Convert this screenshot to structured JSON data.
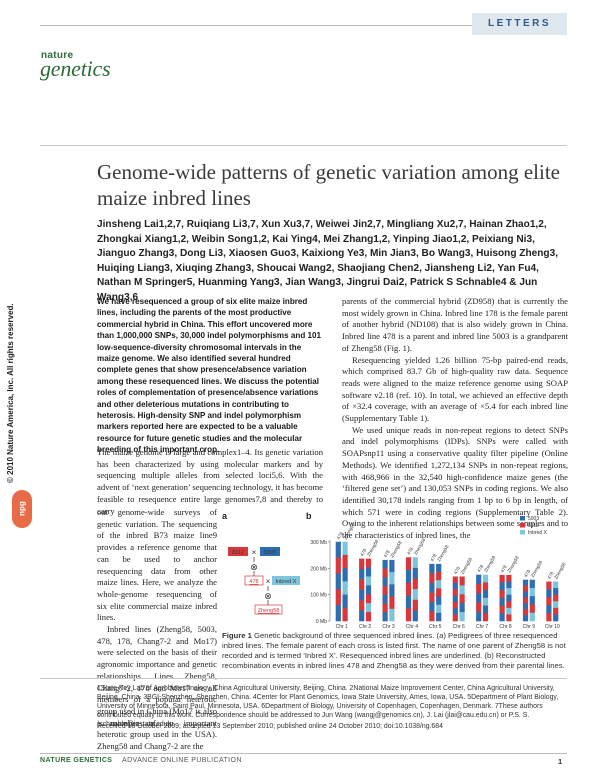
{
  "header": {
    "section_label": "LETTERS",
    "logo_top": "nature",
    "logo_bottom": "genetics"
  },
  "copyright": "© 2010 Nature America, Inc.  All rights reserved.",
  "npg_logo": "npg",
  "title": "Genome-wide patterns of genetic variation among elite maize inbred lines",
  "authors": "Jinsheng Lai1,2,7, Ruiqiang Li3,7, Xun Xu3,7, Weiwei Jin2,7, Mingliang Xu2,7, Hainan Zhao1,2, Zhongkai Xiang1,2, Weibin Song1,2, Kai Ying4, Mei Zhang1,2, Yinping Jiao1,2, Peixiang Ni3, Jianguo Zhang3, Dong Li3, Xiaosen Guo3, Kaixiong Ye3, Min Jian3, Bo Wang3, Huisong Zheng3, Huiqing Liang3, Xiuqing Zhang3, Shoucai Wang2, Shaojiang Chen2, Jiansheng Li2, Yan Fu4, Nathan M Springer5, Huanming Yang3, Jian Wang3, Jingrui Dai2, Patrick S Schnable4 & Jun Wang3,6",
  "abstract": "We have resequenced a group of six elite maize inbred lines, including the parents of the most productive commercial hybrid in China. This effort uncovered more than 1,000,000 SNPs, 30,000 indel polymorphisms and 101 low-sequence-diversity chromosomal intervals in the maize genome. We also identified several hundred complete genes that show presence/absence variation among these resequenced lines. We discuss the potential roles of complementation of presence/absence variations and other deleterious mutations in contributing to heterosis. High-density SNP and indel polymorphism markers reported here are expected to be a valuable resource for future genetic studies and the molecular breeding of this important crop.",
  "body_left_1": "The maize genome is large and complex1–4. Its genetic variation has been characterized by using molecular markers and by sequencing multiple alleles from selected loci5,6. With the advent of ‘next generation’ sequencing technology, it has become feasible to resequence entire large genomes7,8 and thereby to carry",
  "body_left_2": "out genome-wide surveys of genetic variation. The sequencing of the inbred B73 maize line9 provides a reference genome that can be used to anchor resequencing data from other maize lines. Here, we analyze the whole-genome resequencing of six elite commercial maize inbred lines.",
  "body_left_3": "Inbred lines (Zheng58, 5003, 478, 178, Chang7-2 and Mo17) were selected on the basis of their agronomic importance and genetic relationships. Lines Zheng58, Chang7-2, 178 and Mo17 are all members of a popular heterotic group used in China (Mo17 is also a member of an important heterotic group used in the USA). Zheng58 and Chang7-2 are the",
  "body_right_1": "parents of the commercial hybrid (ZD958) that is currently the most widely grown in China. Inbred line 178 is the female parent of another hybrid (ND108) that is also widely grown in China. Inbred line 478 is a parent and inbred line 5003 is a grandparent of Zheng58 (Fig. 1).",
  "body_right_2": "Resequencing yielded 1.26 billion 75-bp paired-end reads, which comprised 83.7 Gb of high-quality raw data. Sequence reads were aligned to the maize reference genome using SOAP software v2.18 (ref. 10). In total, we achieved an effective depth of ×32.4 coverage, with an average of ×5.4 for each inbred line (Supplementary Table 1).",
  "body_right_3": "We used unique reads in non-repeat regions to detect SNPs and indel polymorphisms (IDPs). SNPs were called with SOAPsnp11 using a conservative quality filter pipeline (Online Methods). We identified 1,272,134 SNPs in non-repeat regions, with 468,966 in the 32,540 high-confidence maize genes (the ‘filtered gene set’) and 130,053 SNPs in coding regions. We also identified 30,178 indels ranging from 1 bp to 6 bp in length, of which 571 were in coding regions (Supplementary Table 2). Owing to the inherent relationships between some samples and to the characteristics of inbred lines, the",
  "figure": {
    "panel_a": "a",
    "panel_b": "b",
    "pedigree": {
      "line_8112": "8112",
      "line_5003": "5003",
      "line_478": "478",
      "line_inbred_x": "Inbred X",
      "line_zheng58": "Zheng58",
      "cross_symbol": "×",
      "self_symbol": "⊗"
    }
  },
  "chart_data": {
    "type": "bar",
    "title": "",
    "ylabel": "",
    "ylim": [
      0,
      300
    ],
    "y_ticks": [
      "0 Mb",
      "100 Mb",
      "200 Mb",
      "300 Mb"
    ],
    "categories": [
      "Chr 1",
      "Chr 2",
      "Chr 3",
      "Chr 4",
      "Chr 5",
      "Chr 6",
      "Chr 7",
      "Chr 8",
      "Chr 9",
      "Chr 10"
    ],
    "chromosome_length_mb": [
      301,
      237,
      232,
      242,
      217,
      169,
      176,
      175,
      157,
      150
    ],
    "bar_labels": [
      "478",
      "Zheng58"
    ],
    "legend": [
      {
        "name": "5003",
        "color": "#2d6db0"
      },
      {
        "name": "8112",
        "color": "#d9383a"
      },
      {
        "name": "Inbred X",
        "color": "#7fc4de"
      }
    ],
    "legend_position": "top-right"
  },
  "caption": {
    "label": "Figure 1",
    "text": "Genetic background of three sequenced inbred lines. (a) Pedigrees of three resequenced inbred lines. The female parent of each cross is listed first. The name of one parent of Zheng58 is not recorded and is termed ‘Inbred X’. Resequenced inbred lines are underlined. (b) Reconstructed recombination events in inbred lines 478 and Zheng58 as they were derived from their parental lines."
  },
  "affiliations": "1State Key Lab of Agrobiotechnology, China Agricultural University, Beijing, China. 2National Maize Improvement Center, China Agricultural University, Beijing, China. 3BGI-Shenzhen, Shenzhen, China. 4Center for Plant Genomics, Iowa State University, Ames, Iowa, USA. 5Department of Plant Biology, University of Minnesota, Saint Paul, Minnesota, USA. 6Department of Biology, University of Copenhagen, Copenhagen, Denmark. 7These authors contributed equally to this work. Correspondence should be addressed to Jun Wang (wangj@genomics.cn), J. Lai (jlai@cau.edu.cn) or P.S. S. (schnable@iastate.edu).",
  "received": "Received 16 October 2009; accepted 13 September 2010; published online 24 October 2010; doi:10.1038/ng.684",
  "footer": {
    "journal": "NATURE GENETICS",
    "publication": "ADVANCE ONLINE PUBLICATION",
    "page": "1"
  }
}
